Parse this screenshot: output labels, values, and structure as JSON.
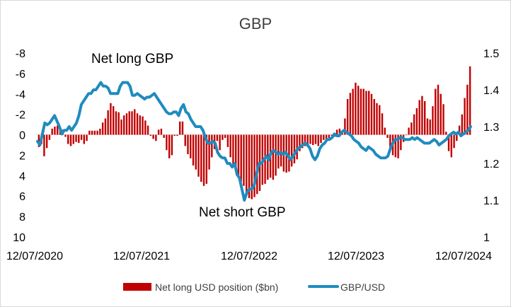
{
  "chart_data": {
    "type": "bar+line",
    "title": "GBP",
    "annotations": [
      "Net long GBP",
      "Net short GBP"
    ],
    "legend_position": "bottom",
    "x_ticks": [
      "12/07/2020",
      "12/07/2021",
      "12/07/2022",
      "12/07/2023",
      "12/07/2024"
    ],
    "left_axis": {
      "reversed": true,
      "ylim": [
        10,
        -8
      ],
      "tick_values": [
        -8,
        -6,
        -4,
        -2,
        0,
        2,
        4,
        6,
        8,
        10
      ],
      "tick_labels": [
        "-8",
        "-6",
        "-4",
        "-2",
        "0",
        "2",
        "4",
        "6",
        "8",
        "10"
      ]
    },
    "right_axis": {
      "ylim": [
        1,
        1.5
      ],
      "tick_values": [
        1,
        1.1,
        1.2,
        1.3,
        1.4,
        1.5
      ],
      "tick_labels": [
        "1",
        "1.1",
        "1.2",
        "1.3",
        "1.4",
        "1.5"
      ]
    },
    "series": [
      {
        "name": "Net long USD position ($bn)",
        "kind": "bar",
        "axis": "left",
        "color": "#c00000",
        "values": [
          1.2,
          0.9,
          2.1,
          1.3,
          0.5,
          -0.6,
          -0.8,
          -0.9,
          -0.7,
          -0.5,
          0.2,
          0.9,
          1.1,
          0.9,
          0.7,
          0.8,
          0.5,
          0.9,
          0.6,
          -0.4,
          -0.4,
          -0.4,
          -0.4,
          -0.6,
          -1.2,
          -1.6,
          -2.4,
          -3.1,
          -2.8,
          -2.3,
          -2.2,
          -1.5,
          -1.9,
          -2.1,
          -2.3,
          -2.3,
          -2.5,
          -2.1,
          -1.9,
          -1.8,
          -1.4,
          -0.9,
          0.1,
          0.4,
          0.6,
          -0.5,
          -0.6,
          0.3,
          1.5,
          2.3,
          2.0,
          0.1,
          0.1,
          -1.3,
          -1.3,
          1.1,
          1.9,
          2.3,
          3.0,
          3.4,
          4.1,
          4.6,
          5.0,
          4.8,
          3.4,
          2.2,
          1.4,
          0.6,
          1.5,
          0.5,
          0.3,
          1.2,
          2.2,
          3.1,
          3.5,
          4.0,
          4.6,
          5.0,
          5.8,
          6.2,
          6.3,
          6.1,
          5.8,
          5.5,
          4.9,
          4.8,
          4.4,
          4.2,
          4.4,
          4.0,
          3.3,
          3.1,
          3.6,
          3.7,
          3.6,
          3.1,
          2.8,
          2.4,
          1.6,
          1.3,
          1.1,
          1.2,
          0.9,
          1.0,
          0.9,
          1.1,
          0.8,
          0.5,
          0.6,
          0.3,
          0.1,
          0.2,
          -0.5,
          -0.6,
          -0.2,
          -1.6,
          -3.5,
          -4.1,
          -4.5,
          -5.1,
          -4.8,
          -4.5,
          -4.5,
          -4.3,
          -4.3,
          -4.0,
          -3.5,
          -3.1,
          -2.9,
          -2.1,
          -0.7,
          0.3,
          1.3,
          2.0,
          2.2,
          2.3,
          1.5,
          0.7,
          0.0,
          -0.7,
          -1.2,
          -2.0,
          -2.6,
          -3.4,
          -3.8,
          -3.3,
          -1.6,
          -1.5,
          -2.8,
          -4.5,
          -4.9,
          -4.0,
          -3.0,
          -0.3,
          1.6,
          2.2,
          1.3,
          0.6,
          -0.9,
          -2.0,
          -3.6,
          -4.9,
          -6.7
        ]
      },
      {
        "name": "GBP/USD",
        "kind": "line",
        "axis": "right",
        "color": "#1f8bbf",
        "values": [
          1.26,
          1.25,
          1.28,
          1.31,
          1.305,
          1.31,
          1.32,
          1.33,
          1.315,
          1.3,
          1.28,
          1.29,
          1.29,
          1.3,
          1.29,
          1.3,
          1.31,
          1.33,
          1.36,
          1.37,
          1.38,
          1.39,
          1.39,
          1.4,
          1.4,
          1.41,
          1.42,
          1.41,
          1.41,
          1.405,
          1.39,
          1.39,
          1.39,
          1.39,
          1.41,
          1.42,
          1.42,
          1.42,
          1.41,
          1.385,
          1.385,
          1.39,
          1.385,
          1.38,
          1.375,
          1.38,
          1.38,
          1.385,
          1.39,
          1.38,
          1.37,
          1.36,
          1.35,
          1.34,
          1.335,
          1.335,
          1.34,
          1.34,
          1.33,
          1.35,
          1.36,
          1.34,
          1.335,
          1.32,
          1.31,
          1.3,
          1.3,
          1.3,
          1.29,
          1.27,
          1.255,
          1.255,
          1.26,
          1.255,
          1.23,
          1.22,
          1.215,
          1.215,
          1.2,
          1.2,
          1.19,
          1.2,
          1.17,
          1.16,
          1.13,
          1.1,
          1.12,
          1.13,
          1.13,
          1.14,
          1.17,
          1.2,
          1.2,
          1.21,
          1.22,
          1.21,
          1.23,
          1.235,
          1.23,
          1.225,
          1.23,
          1.225,
          1.23,
          1.22,
          1.21,
          1.22,
          1.23,
          1.24,
          1.245,
          1.25,
          1.255,
          1.25,
          1.24,
          1.22,
          1.21,
          1.22,
          1.24,
          1.25,
          1.255,
          1.265,
          1.265,
          1.27,
          1.28,
          1.275,
          1.275,
          1.285,
          1.29,
          1.285,
          1.28,
          1.275,
          1.265,
          1.26,
          1.255,
          1.245,
          1.24,
          1.235,
          1.245,
          1.24,
          1.235,
          1.225,
          1.22,
          1.215,
          1.215,
          1.215,
          1.22,
          1.24,
          1.255,
          1.265,
          1.265,
          1.27,
          1.27,
          1.265,
          1.265,
          1.265,
          1.27,
          1.265,
          1.27,
          1.265,
          1.26,
          1.255,
          1.255,
          1.255,
          1.26,
          1.265,
          1.26,
          1.25,
          1.255,
          1.26,
          1.265,
          1.275,
          1.28,
          1.285,
          1.28,
          1.285,
          1.275,
          1.28,
          1.285,
          1.29,
          1.3
        ]
      }
    ]
  }
}
